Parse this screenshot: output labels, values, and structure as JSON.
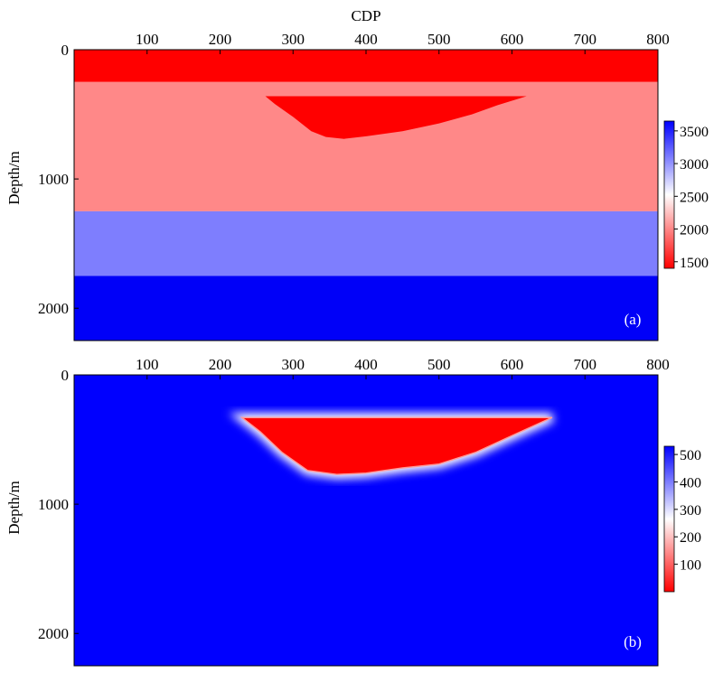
{
  "chart_data": [
    {
      "type": "heatmap",
      "panel_label": "(a)",
      "xlabel": "CDP",
      "ylabel": "Depth/m",
      "xlim": [
        0,
        800
      ],
      "ylim": [
        2250,
        0
      ],
      "x_ticks": [
        100,
        200,
        300,
        400,
        500,
        600,
        700,
        800
      ],
      "y_ticks": [
        0,
        1000,
        2000
      ],
      "colorbar": {
        "range": [
          1400,
          3650
        ],
        "ticks": [
          1500,
          2000,
          2500,
          3000,
          3500
        ],
        "colors": [
          "#ff0000",
          "#ffffff",
          "#0000ff"
        ]
      },
      "layers": [
        {
          "depth_top": 0,
          "depth_bottom": 250,
          "value": 1500,
          "color": "#ff0000"
        },
        {
          "depth_top": 250,
          "depth_bottom": 1250,
          "value": 2000,
          "color": "#ff8888"
        },
        {
          "depth_top": 1250,
          "depth_bottom": 1750,
          "value": 3000,
          "color": "#7e7efe"
        },
        {
          "depth_top": 1750,
          "depth_bottom": 2250,
          "value": 3600,
          "color": "#0000f8"
        }
      ],
      "anomaly": {
        "value": 1500,
        "color": "#ff0000",
        "outline": [
          [
            262,
            360
          ],
          [
            620,
            360
          ],
          [
            580,
            430
          ],
          [
            545,
            500
          ],
          [
            500,
            570
          ],
          [
            450,
            630
          ],
          [
            400,
            670
          ],
          [
            370,
            690
          ],
          [
            345,
            675
          ],
          [
            325,
            630
          ],
          [
            300,
            520
          ],
          [
            275,
            420
          ]
        ]
      }
    },
    {
      "type": "heatmap",
      "panel_label": "(b)",
      "xlabel": "",
      "ylabel": "Depth/m",
      "xlim": [
        0,
        800
      ],
      "ylim": [
        2250,
        0
      ],
      "x_ticks": [
        100,
        200,
        300,
        400,
        500,
        600,
        700,
        800
      ],
      "y_ticks": [
        0,
        1000,
        2000
      ],
      "colorbar": {
        "range": [
          0,
          530
        ],
        "ticks": [
          100,
          200,
          300,
          400,
          500
        ],
        "colors": [
          "#ff0000",
          "#ffffff",
          "#0000ff"
        ]
      },
      "background": {
        "value": 520,
        "color": "#0000ff"
      },
      "anomaly": {
        "value": 10,
        "color": "#ff0000",
        "outline": [
          [
            230,
            330
          ],
          [
            655,
            330
          ],
          [
            600,
            470
          ],
          [
            550,
            600
          ],
          [
            500,
            690
          ],
          [
            450,
            720
          ],
          [
            400,
            760
          ],
          [
            360,
            770
          ],
          [
            320,
            740
          ],
          [
            285,
            600
          ],
          [
            255,
            440
          ]
        ]
      }
    }
  ]
}
